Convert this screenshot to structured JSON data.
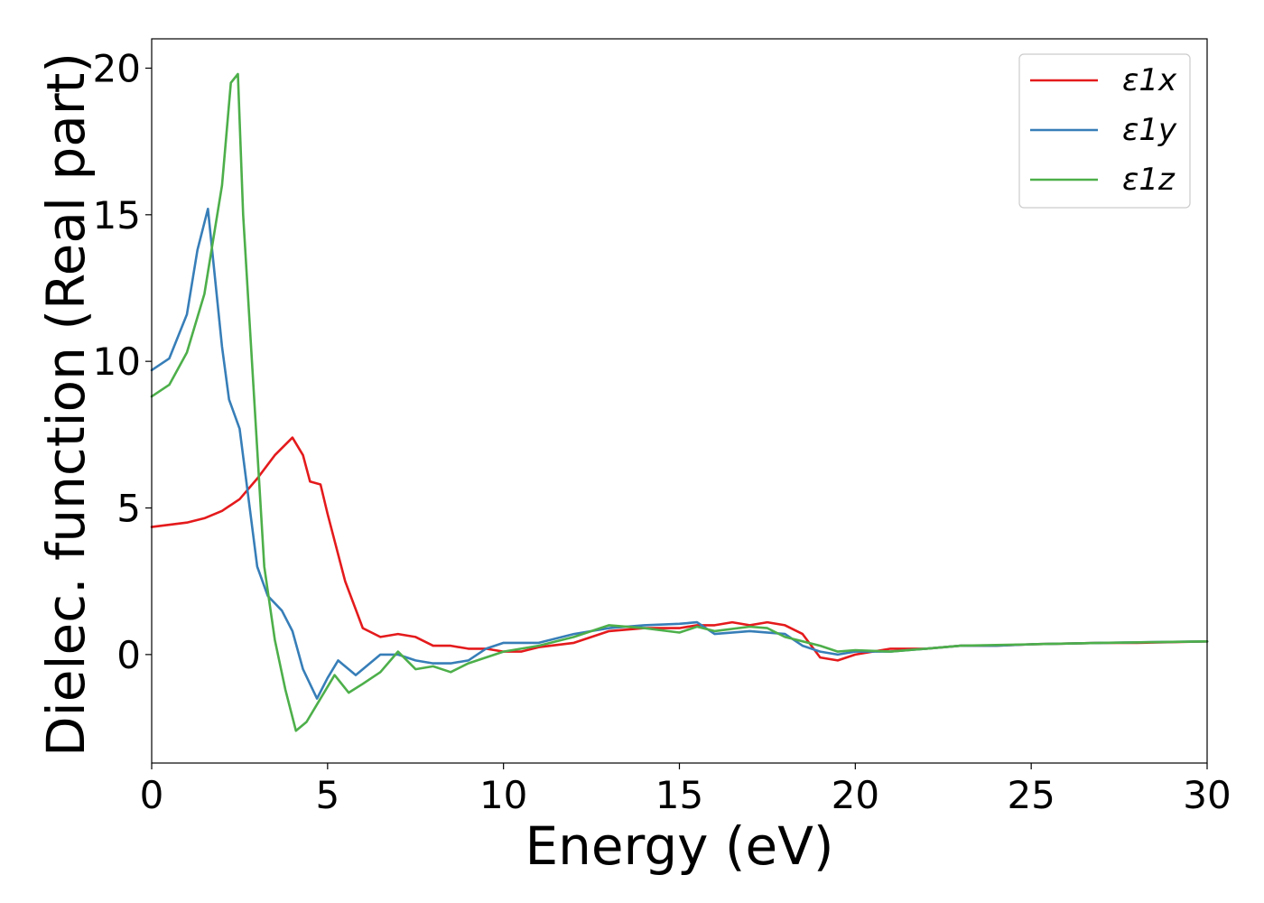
{
  "chart_data": {
    "type": "line",
    "xlabel": "Energy (eV)",
    "ylabel": "Dielec. function (Real part)",
    "xlim": [
      0,
      30
    ],
    "ylim": [
      -3.7,
      21.0
    ],
    "xticks": [
      0,
      5,
      10,
      15,
      20,
      25,
      30
    ],
    "yticks": [
      0,
      5,
      10,
      15,
      20
    ],
    "grid": false,
    "legend_position": "top-right",
    "series": [
      {
        "name": "ε1x",
        "color": "#e41a1c",
        "x": [
          0,
          1,
          1.5,
          2,
          2.5,
          3,
          3.5,
          4,
          4.3,
          4.5,
          4.8,
          5,
          5.5,
          6,
          6.5,
          7,
          7.5,
          8,
          8.5,
          9,
          9.5,
          10,
          10.5,
          11,
          12,
          13,
          14,
          15,
          15.5,
          16,
          16.5,
          17,
          17.5,
          18,
          18.5,
          19,
          19.5,
          20,
          21,
          22,
          23,
          24,
          25,
          27,
          28,
          30
        ],
        "y": [
          4.35,
          4.5,
          4.65,
          4.9,
          5.3,
          6.0,
          6.8,
          7.4,
          6.8,
          5.9,
          5.8,
          4.8,
          2.5,
          0.9,
          0.6,
          0.7,
          0.6,
          0.3,
          0.3,
          0.2,
          0.2,
          0.1,
          0.1,
          0.25,
          0.4,
          0.8,
          0.9,
          0.9,
          1.0,
          1.0,
          1.1,
          1.0,
          1.1,
          1.0,
          0.7,
          -0.1,
          -0.2,
          0.0,
          0.2,
          0.2,
          0.3,
          0.3,
          0.35,
          0.4,
          0.4,
          0.45
        ]
      },
      {
        "name": "ε1y",
        "color": "#377eb8",
        "x": [
          0,
          0.5,
          1,
          1.3,
          1.6,
          2,
          2.2,
          2.5,
          3,
          3.3,
          3.7,
          4,
          4.3,
          4.7,
          5,
          5.3,
          5.8,
          6.5,
          7,
          7.5,
          8,
          8.5,
          9,
          9.5,
          10,
          11,
          12,
          13,
          14,
          15,
          15.5,
          16,
          17,
          18,
          18.5,
          19,
          19.5,
          20,
          21,
          22,
          23,
          24,
          25,
          27,
          30
        ],
        "y": [
          9.7,
          10.1,
          11.6,
          13.8,
          15.2,
          10.5,
          8.7,
          7.7,
          3.0,
          2.0,
          1.5,
          0.8,
          -0.5,
          -1.5,
          -0.8,
          -0.2,
          -0.7,
          0.0,
          0.0,
          -0.2,
          -0.3,
          -0.3,
          -0.2,
          0.2,
          0.4,
          0.4,
          0.7,
          0.9,
          1.0,
          1.05,
          1.1,
          0.7,
          0.8,
          0.7,
          0.3,
          0.1,
          0.0,
          0.1,
          0.1,
          0.2,
          0.3,
          0.3,
          0.35,
          0.4,
          0.45
        ]
      },
      {
        "name": "ε1z",
        "color": "#4daf4a",
        "x": [
          0,
          0.5,
          1,
          1.5,
          2,
          2.25,
          2.45,
          2.6,
          3,
          3.2,
          3.5,
          3.8,
          4.1,
          4.4,
          4.8,
          5.2,
          5.6,
          6,
          6.5,
          7,
          7.5,
          8,
          8.5,
          9,
          9.5,
          10,
          11,
          12,
          13,
          14,
          15,
          15.5,
          16,
          17,
          17.5,
          18,
          19,
          19.5,
          20,
          21,
          22,
          23,
          25,
          27,
          30
        ],
        "y": [
          8.8,
          9.2,
          10.3,
          12.3,
          16.0,
          19.5,
          19.8,
          15.0,
          7.0,
          3.0,
          0.5,
          -1.2,
          -2.6,
          -2.3,
          -1.5,
          -0.7,
          -1.3,
          -1.0,
          -0.6,
          0.1,
          -0.5,
          -0.4,
          -0.6,
          -0.3,
          -0.1,
          0.1,
          0.3,
          0.6,
          1.0,
          0.9,
          0.75,
          0.95,
          0.8,
          0.95,
          0.9,
          0.6,
          0.3,
          0.1,
          0.15,
          0.1,
          0.2,
          0.3,
          0.35,
          0.4,
          0.45
        ]
      }
    ]
  }
}
